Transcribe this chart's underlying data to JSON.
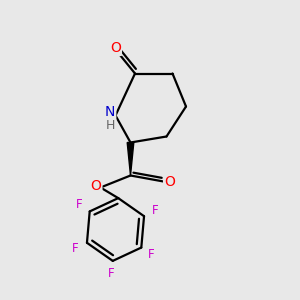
{
  "background_color": "#e8e8e8",
  "bond_color": "#000000",
  "atom_colors": {
    "O": "#ff0000",
    "N": "#0000cc",
    "H": "#666666",
    "F": "#cc00cc"
  },
  "figsize": [
    3.0,
    3.0
  ],
  "dpi": 100
}
